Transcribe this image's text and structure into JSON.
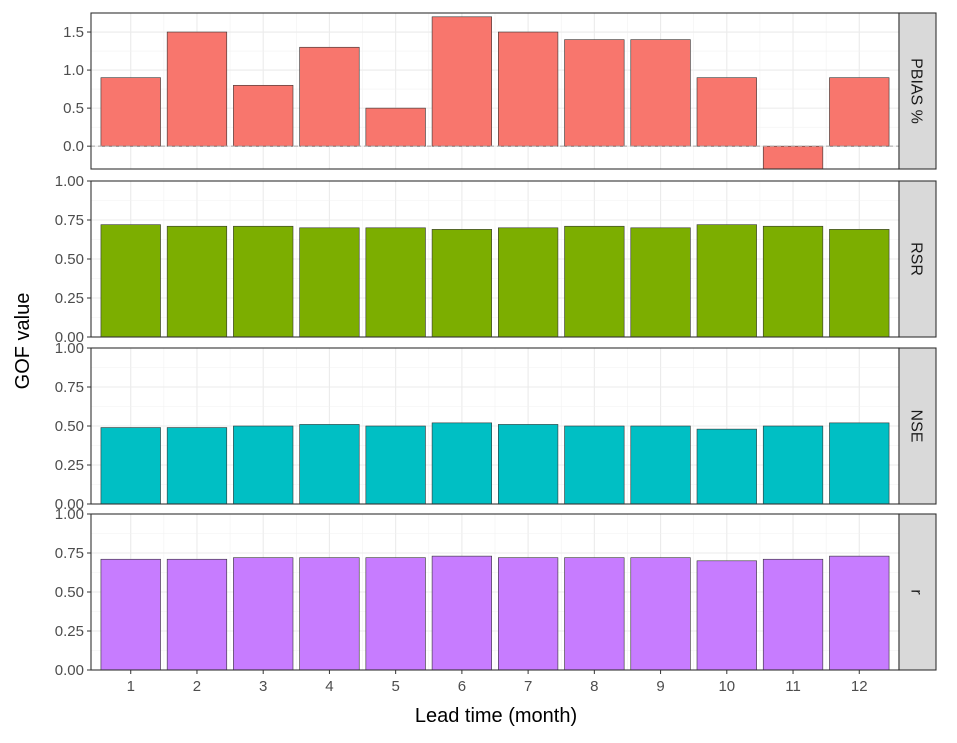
{
  "chart_data": {
    "type": "bar",
    "xlabel": "Lead time (month)",
    "ylabel": "GOF value",
    "categories": [
      "1",
      "2",
      "3",
      "4",
      "5",
      "6",
      "7",
      "8",
      "9",
      "10",
      "11",
      "12"
    ],
    "grid": true,
    "reference_line": 0,
    "facets": [
      {
        "name": "PBIAS %",
        "color": "#F8766D",
        "ylim": [
          -0.3,
          1.75
        ],
        "yticks": [
          "0.0",
          "0.5",
          "1.0",
          "1.5"
        ],
        "values": [
          0.9,
          1.5,
          0.8,
          1.3,
          0.5,
          1.7,
          1.5,
          1.4,
          1.4,
          0.9,
          -0.3,
          0.9
        ]
      },
      {
        "name": "RSR",
        "color": "#7CAE00",
        "ylim": [
          0,
          1.0
        ],
        "yticks": [
          "0.00",
          "0.25",
          "0.50",
          "0.75",
          "1.00"
        ],
        "values": [
          0.72,
          0.71,
          0.71,
          0.7,
          0.7,
          0.69,
          0.7,
          0.71,
          0.7,
          0.72,
          0.71,
          0.69
        ]
      },
      {
        "name": "NSE",
        "color": "#00BFC4",
        "ylim": [
          0,
          1.0
        ],
        "yticks": [
          "0.00",
          "0.25",
          "0.50",
          "0.75",
          "1.00"
        ],
        "values": [
          0.49,
          0.49,
          0.5,
          0.51,
          0.5,
          0.52,
          0.51,
          0.5,
          0.5,
          0.48,
          0.5,
          0.52
        ]
      },
      {
        "name": "r",
        "color": "#C77CFF",
        "ylim": [
          0,
          1.0
        ],
        "yticks": [
          "0.00",
          "0.25",
          "0.50",
          "0.75",
          "1.00"
        ],
        "values": [
          0.71,
          0.71,
          0.72,
          0.72,
          0.72,
          0.73,
          0.72,
          0.72,
          0.72,
          0.7,
          0.71,
          0.73
        ]
      }
    ]
  }
}
